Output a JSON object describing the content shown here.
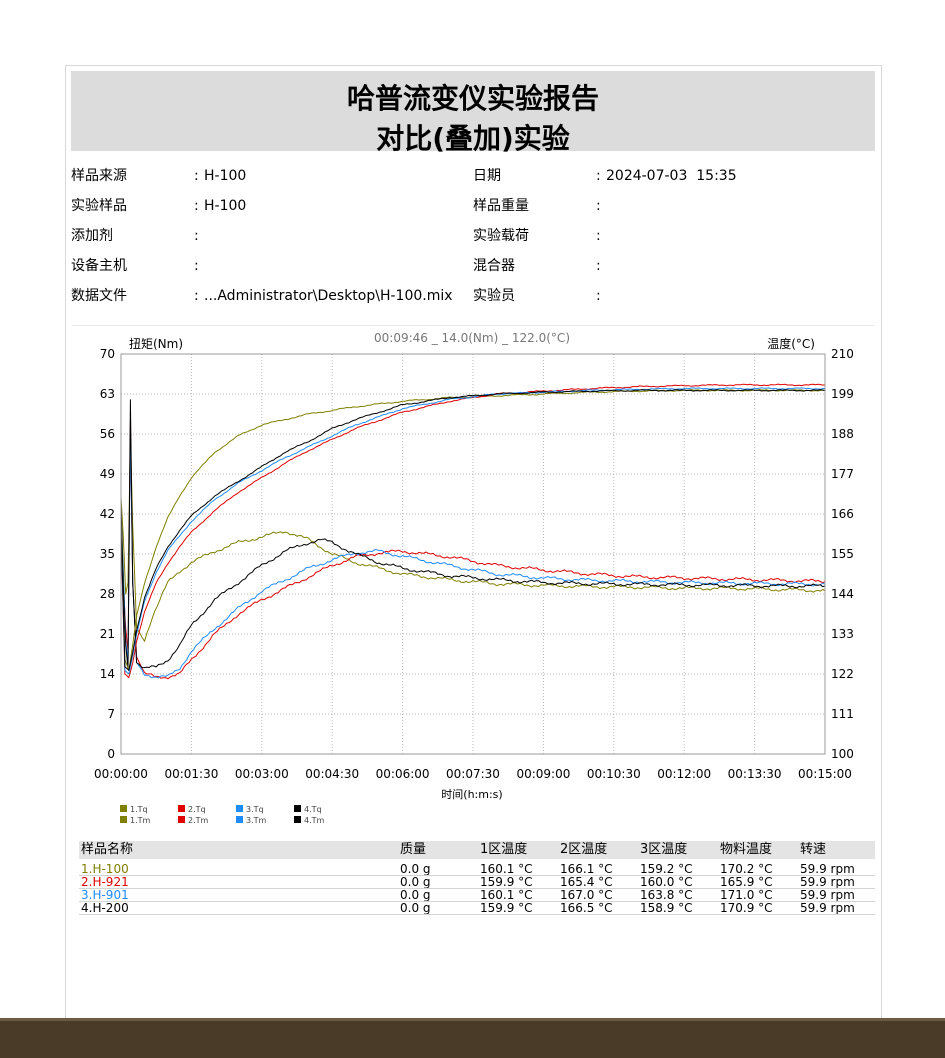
{
  "report": {
    "title": "哈普流变仪实验报告",
    "subtitle": "对比(叠加)实验"
  },
  "info": {
    "left": [
      {
        "label": "样品来源",
        "value": "H-100"
      },
      {
        "label": "实验样品",
        "value": "H-100"
      },
      {
        "label": "添加剂",
        "value": ""
      },
      {
        "label": "设备主机",
        "value": ""
      },
      {
        "label": "数据文件",
        "value": "...Administrator\\Desktop\\H-100.mix"
      }
    ],
    "right": [
      {
        "label": "日期",
        "value": "2024-07-03  15:35"
      },
      {
        "label": "样品重量",
        "value": ""
      },
      {
        "label": "实验载荷",
        "value": ""
      },
      {
        "label": "混合器",
        "value": ""
      },
      {
        "label": "实验员",
        "value": ""
      }
    ]
  },
  "chart_data": {
    "type": "line",
    "cursor_readout": "00:09:46 _ 14.0(Nm) _ 122.0(°C)",
    "ylabel": "扭矩(Nm)",
    "y2label": "温度(°C)",
    "xlabel": "时间(h:m:s)",
    "ylim": [
      0,
      70
    ],
    "y2lim": [
      100,
      210
    ],
    "xlim_seconds": [
      0,
      900
    ],
    "yticks": [
      "0",
      "7",
      "14",
      "21",
      "28",
      "35",
      "42",
      "49",
      "56",
      "63",
      "70"
    ],
    "y2ticks": [
      "100",
      "111",
      "122",
      "133",
      "144",
      "155",
      "166",
      "177",
      "188",
      "199",
      "210"
    ],
    "xticks": [
      "00:00:00",
      "00:01:30",
      "00:03:00",
      "00:04:30",
      "00:06:00",
      "00:07:30",
      "00:09:00",
      "00:10:30",
      "00:12:00",
      "00:13:30",
      "00:15:00"
    ],
    "grid": true,
    "legend_position": "bottom-left",
    "series": [
      {
        "name": "1.Tq",
        "axis": "torque",
        "color": "#808000",
        "points": [
          [
            0,
            45
          ],
          [
            3,
            38
          ],
          [
            6,
            28
          ],
          [
            9,
            30
          ],
          [
            12,
            56
          ],
          [
            15,
            40
          ],
          [
            20,
            22
          ],
          [
            30,
            20
          ],
          [
            40,
            24
          ],
          [
            50,
            27
          ],
          [
            60,
            30
          ],
          [
            75,
            32
          ],
          [
            90,
            33.5
          ],
          [
            120,
            35.5
          ],
          [
            150,
            37
          ],
          [
            180,
            38
          ],
          [
            210,
            39
          ],
          [
            240,
            37.5
          ],
          [
            270,
            35
          ],
          [
            300,
            33.5
          ],
          [
            330,
            32.5
          ],
          [
            360,
            31.5
          ],
          [
            420,
            30.5
          ],
          [
            480,
            29.8
          ],
          [
            540,
            29.5
          ],
          [
            600,
            29.3
          ],
          [
            660,
            29.2
          ],
          [
            720,
            29
          ],
          [
            780,
            29
          ],
          [
            840,
            28.8
          ],
          [
            900,
            28.6
          ]
        ]
      },
      {
        "name": "2.Tq",
        "axis": "torque",
        "color": "#e00000",
        "points": [
          [
            0,
            40
          ],
          [
            3,
            30
          ],
          [
            6,
            22
          ],
          [
            9,
            18
          ],
          [
            12,
            58
          ],
          [
            15,
            30
          ],
          [
            20,
            17
          ],
          [
            30,
            14
          ],
          [
            45,
            13.5
          ],
          [
            60,
            13.5
          ],
          [
            75,
            14
          ],
          [
            90,
            16.5
          ],
          [
            120,
            21
          ],
          [
            150,
            24.5
          ],
          [
            180,
            27
          ],
          [
            210,
            29
          ],
          [
            240,
            31
          ],
          [
            270,
            33
          ],
          [
            300,
            34.5
          ],
          [
            330,
            35.2
          ],
          [
            360,
            35.5
          ],
          [
            420,
            34.5
          ],
          [
            480,
            33
          ],
          [
            540,
            32.2
          ],
          [
            600,
            31.5
          ],
          [
            660,
            31
          ],
          [
            720,
            30.8
          ],
          [
            780,
            30.6
          ],
          [
            840,
            30.4
          ],
          [
            900,
            30.2
          ]
        ]
      },
      {
        "name": "3.Tq",
        "axis": "torque",
        "color": "#1e8cff",
        "points": [
          [
            0,
            42
          ],
          [
            3,
            32
          ],
          [
            6,
            20
          ],
          [
            9,
            16
          ],
          [
            12,
            57
          ],
          [
            15,
            30
          ],
          [
            20,
            16
          ],
          [
            30,
            14
          ],
          [
            45,
            13.5
          ],
          [
            60,
            13.5
          ],
          [
            75,
            15
          ],
          [
            90,
            18
          ],
          [
            120,
            22
          ],
          [
            150,
            25.5
          ],
          [
            180,
            28.5
          ],
          [
            210,
            30.5
          ],
          [
            240,
            32.5
          ],
          [
            270,
            34
          ],
          [
            300,
            35.2
          ],
          [
            330,
            35.5
          ],
          [
            360,
            34.6
          ],
          [
            420,
            33
          ],
          [
            480,
            31.5
          ],
          [
            540,
            30.8
          ],
          [
            600,
            30.4
          ],
          [
            660,
            30.2
          ],
          [
            720,
            30
          ],
          [
            780,
            29.9
          ],
          [
            840,
            29.8
          ],
          [
            900,
            29.7
          ]
        ]
      },
      {
        "name": "4.Tq",
        "axis": "torque",
        "color": "#000000",
        "points": [
          [
            0,
            44
          ],
          [
            3,
            30
          ],
          [
            6,
            19
          ],
          [
            9,
            15
          ],
          [
            12,
            62
          ],
          [
            15,
            30
          ],
          [
            20,
            16
          ],
          [
            30,
            15
          ],
          [
            45,
            15.2
          ],
          [
            60,
            16.5
          ],
          [
            75,
            19
          ],
          [
            90,
            22.5
          ],
          [
            120,
            27
          ],
          [
            150,
            30
          ],
          [
            180,
            33
          ],
          [
            210,
            35.5
          ],
          [
            240,
            37
          ],
          [
            255,
            37.5
          ],
          [
            270,
            37
          ],
          [
            300,
            35
          ],
          [
            330,
            33.5
          ],
          [
            360,
            32.5
          ],
          [
            420,
            31.2
          ],
          [
            480,
            30.5
          ],
          [
            540,
            30
          ],
          [
            600,
            29.8
          ],
          [
            660,
            29.7
          ],
          [
            720,
            29.6
          ],
          [
            780,
            29.5
          ],
          [
            840,
            29.4
          ],
          [
            900,
            29.4
          ]
        ]
      },
      {
        "name": "1.Tm",
        "axis": "temperature",
        "color": "#808000",
        "points": [
          [
            0,
            163
          ],
          [
            5,
            126
          ],
          [
            10,
            123
          ],
          [
            15,
            130
          ],
          [
            20,
            138
          ],
          [
            30,
            147
          ],
          [
            45,
            157
          ],
          [
            60,
            165
          ],
          [
            75,
            171
          ],
          [
            90,
            176
          ],
          [
            120,
            183
          ],
          [
            150,
            187.5
          ],
          [
            180,
            190.5
          ],
          [
            210,
            192
          ],
          [
            240,
            193.5
          ],
          [
            270,
            194.5
          ],
          [
            300,
            195.5
          ],
          [
            360,
            197
          ],
          [
            420,
            198
          ],
          [
            480,
            198.5
          ],
          [
            540,
            199
          ],
          [
            600,
            199.5
          ],
          [
            660,
            199.8
          ],
          [
            720,
            200
          ],
          [
            780,
            200
          ],
          [
            840,
            200
          ],
          [
            900,
            200
          ]
        ]
      },
      {
        "name": "2.Tm",
        "axis": "temperature",
        "color": "#e00000",
        "points": [
          [
            0,
            160
          ],
          [
            5,
            122
          ],
          [
            10,
            121
          ],
          [
            15,
            125
          ],
          [
            20,
            131
          ],
          [
            30,
            139
          ],
          [
            45,
            147
          ],
          [
            60,
            152.5
          ],
          [
            75,
            157
          ],
          [
            90,
            161
          ],
          [
            120,
            167
          ],
          [
            150,
            172
          ],
          [
            180,
            176
          ],
          [
            210,
            180
          ],
          [
            240,
            183.5
          ],
          [
            270,
            186.5
          ],
          [
            300,
            189.5
          ],
          [
            360,
            194
          ],
          [
            420,
            197
          ],
          [
            480,
            199
          ],
          [
            540,
            199.8
          ],
          [
            600,
            200.5
          ],
          [
            660,
            201
          ],
          [
            720,
            201.3
          ],
          [
            780,
            201.5
          ],
          [
            840,
            201.5
          ],
          [
            900,
            201.5
          ]
        ]
      },
      {
        "name": "3.Tm",
        "axis": "temperature",
        "color": "#1e8cff",
        "points": [
          [
            0,
            162
          ],
          [
            5,
            123
          ],
          [
            10,
            122
          ],
          [
            15,
            127
          ],
          [
            20,
            133
          ],
          [
            30,
            142
          ],
          [
            45,
            150
          ],
          [
            60,
            156
          ],
          [
            75,
            160
          ],
          [
            90,
            164
          ],
          [
            120,
            170
          ],
          [
            150,
            174.5
          ],
          [
            180,
            178
          ],
          [
            210,
            181.5
          ],
          [
            240,
            184.5
          ],
          [
            270,
            187.5
          ],
          [
            300,
            190.5
          ],
          [
            360,
            195
          ],
          [
            420,
            197.5
          ],
          [
            480,
            199
          ],
          [
            540,
            199.5
          ],
          [
            600,
            200
          ],
          [
            660,
            200.3
          ],
          [
            720,
            200.5
          ],
          [
            780,
            200.5
          ],
          [
            840,
            200.5
          ],
          [
            900,
            200.5
          ]
        ]
      },
      {
        "name": "4.Tm",
        "axis": "temperature",
        "color": "#000000",
        "points": [
          [
            0,
            163
          ],
          [
            5,
            124
          ],
          [
            10,
            123
          ],
          [
            15,
            128
          ],
          [
            20,
            134
          ],
          [
            30,
            143
          ],
          [
            45,
            151
          ],
          [
            60,
            157
          ],
          [
            75,
            161.5
          ],
          [
            90,
            165.5
          ],
          [
            120,
            171
          ],
          [
            150,
            175
          ],
          [
            180,
            179
          ],
          [
            210,
            183
          ],
          [
            240,
            186
          ],
          [
            270,
            189.5
          ],
          [
            300,
            192
          ],
          [
            360,
            196
          ],
          [
            420,
            198
          ],
          [
            480,
            199
          ],
          [
            540,
            199.5
          ],
          [
            600,
            199.8
          ],
          [
            660,
            200
          ],
          [
            720,
            200
          ],
          [
            780,
            200
          ],
          [
            840,
            200
          ],
          [
            900,
            200
          ]
        ]
      }
    ]
  },
  "legend": {
    "items": [
      {
        "label": "1.Tq",
        "color": "#808000"
      },
      {
        "label": "1.Tm",
        "color": "#808000"
      },
      {
        "label": "2.Tq",
        "color": "#e00000"
      },
      {
        "label": "2.Tm",
        "color": "#e00000"
      },
      {
        "label": "3.Tq",
        "color": "#1e8cff"
      },
      {
        "label": "3.Tm",
        "color": "#1e8cff"
      },
      {
        "label": "4.Tq",
        "color": "#000000"
      },
      {
        "label": "4.Tm",
        "color": "#000000"
      }
    ]
  },
  "table": {
    "headers": [
      "样品名称",
      "质量",
      "1区温度",
      "2区温度",
      "3区温度",
      "物料温度",
      "转速"
    ],
    "rows": [
      {
        "name": "1.H-100",
        "color": "#808000",
        "cells": [
          "0.0 g",
          "160.1 °C",
          "166.1 °C",
          "159.2 °C",
          "170.2 °C",
          "59.9 rpm"
        ]
      },
      {
        "name": "2.H-921",
        "color": "#e00000",
        "cells": [
          "0.0 g",
          "159.9 °C",
          "165.4 °C",
          "160.0 °C",
          "165.9 °C",
          "59.9 rpm"
        ]
      },
      {
        "name": "3.H-901",
        "color": "#1e8cff",
        "cells": [
          "0.0 g",
          "160.1 °C",
          "167.0 °C",
          "163.8 °C",
          "171.0 °C",
          "59.9 rpm"
        ]
      },
      {
        "name": "4.H-200",
        "color": "#000000",
        "cells": [
          "0.0 g",
          "159.9 °C",
          "166.5 °C",
          "158.9 °C",
          "170.9 °C",
          "59.9 rpm"
        ]
      }
    ]
  }
}
